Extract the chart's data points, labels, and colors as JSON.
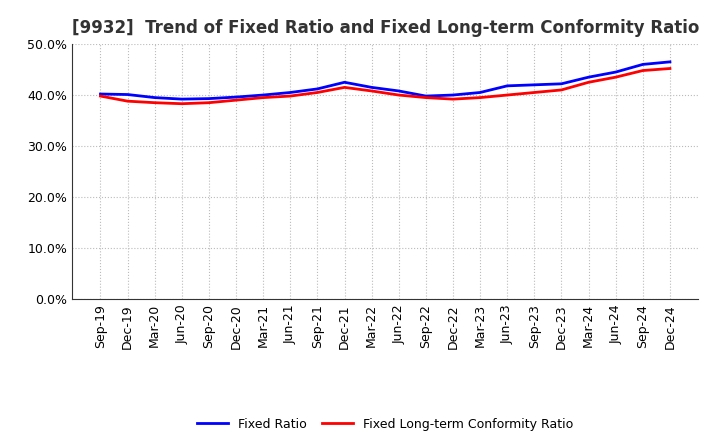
{
  "title": "[9932]  Trend of Fixed Ratio and Fixed Long-term Conformity Ratio",
  "x_labels": [
    "Sep-19",
    "Dec-19",
    "Mar-20",
    "Jun-20",
    "Sep-20",
    "Dec-20",
    "Mar-21",
    "Jun-21",
    "Sep-21",
    "Dec-21",
    "Mar-22",
    "Jun-22",
    "Sep-22",
    "Dec-22",
    "Mar-23",
    "Jun-23",
    "Sep-23",
    "Dec-23",
    "Mar-24",
    "Jun-24",
    "Sep-24",
    "Dec-24"
  ],
  "fixed_ratio": [
    40.2,
    40.1,
    39.5,
    39.2,
    39.3,
    39.6,
    40.0,
    40.5,
    41.2,
    42.5,
    41.5,
    40.8,
    39.8,
    40.0,
    40.5,
    41.8,
    42.0,
    42.2,
    43.5,
    44.5,
    46.0,
    46.5
  ],
  "fixed_lt_ratio": [
    39.8,
    38.8,
    38.5,
    38.3,
    38.5,
    39.0,
    39.5,
    39.8,
    40.5,
    41.5,
    40.8,
    40.0,
    39.5,
    39.2,
    39.5,
    40.0,
    40.5,
    41.0,
    42.5,
    43.5,
    44.8,
    45.2
  ],
  "fixed_ratio_color": "#0000FF",
  "fixed_lt_ratio_color": "#FF0000",
  "ylim": [
    0,
    50
  ],
  "yticks": [
    0.0,
    10.0,
    20.0,
    30.0,
    40.0,
    50.0
  ],
  "background_color": "#ffffff",
  "plot_bg_color": "#ffffff",
  "grid_color": "#bbbbbb",
  "legend_fixed_ratio": "Fixed Ratio",
  "legend_fixed_lt_ratio": "Fixed Long-term Conformity Ratio",
  "line_width": 2.0,
  "title_fontsize": 12,
  "tick_fontsize": 9,
  "legend_fontsize": 9
}
